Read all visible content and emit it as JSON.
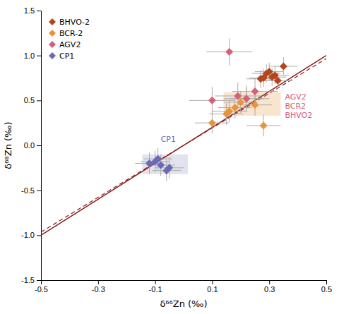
{
  "chart_data": {
    "type": "scatter",
    "title": "",
    "xlabel": "δ⁶⁶Zn (‰)",
    "ylabel": "δ⁶⁸Zn (‰)",
    "xlim": [
      -0.5,
      0.5
    ],
    "ylim": [
      -1.5,
      1.5
    ],
    "xticks": [
      -0.5,
      -0.3,
      -0.1,
      0.1,
      0.3,
      0.5
    ],
    "yticks": [
      -1.5,
      {
        "value": -1.0,
        "label": "-1.0"
      },
      -0.5,
      {
        "value": 0.0,
        "label": "0.0"
      },
      0.5,
      {
        "value": 1.0,
        "label": "1.0"
      },
      1.5
    ],
    "grid": false,
    "legend": "upper-left",
    "series": [
      {
        "name": "BHVO-2",
        "color": "#b5451b",
        "marker": "diamond",
        "x": [
          0.3,
          0.28,
          0.32,
          0.33,
          0.29,
          0.31,
          0.35,
          0.27
        ],
        "values": [
          0.82,
          0.75,
          0.78,
          0.72,
          0.8,
          0.76,
          0.88,
          0.74
        ],
        "xerr": [
          0.05,
          0.05,
          0.05,
          0.05,
          0.05,
          0.05,
          0.05,
          0.05
        ],
        "yerr": [
          0.1,
          0.1,
          0.1,
          0.1,
          0.1,
          0.1,
          0.1,
          0.1
        ]
      },
      {
        "name": "BCR-2",
        "color": "#e8943a",
        "marker": "diamond",
        "x": [
          0.18,
          0.2,
          0.22,
          0.25,
          0.16,
          0.28,
          0.1,
          0.15
        ],
        "values": [
          0.42,
          0.48,
          0.52,
          0.45,
          0.38,
          0.22,
          0.25,
          0.35
        ],
        "xerr": [
          0.06,
          0.06,
          0.06,
          0.06,
          0.06,
          0.06,
          0.06,
          0.06
        ],
        "yerr": [
          0.12,
          0.12,
          0.12,
          0.12,
          0.12,
          0.12,
          0.12,
          0.12
        ]
      },
      {
        "name": "AGV2",
        "color": "#d4607a",
        "marker": "diamond",
        "x": [
          0.16,
          0.19,
          0.25,
          0.22,
          0.1
        ],
        "values": [
          1.04,
          0.55,
          0.6,
          0.52,
          0.5
        ],
        "xerr": [
          0.08,
          0.08,
          0.08,
          0.08,
          0.08
        ],
        "yerr": [
          0.15,
          0.15,
          0.15,
          0.15,
          0.15
        ]
      },
      {
        "name": "CP1",
        "color": "#6b6bb5",
        "marker": "diamond",
        "x": [
          -0.1,
          -0.08,
          -0.06,
          -0.09,
          -0.12,
          -0.05
        ],
        "values": [
          -0.18,
          -0.22,
          -0.28,
          -0.15,
          -0.2,
          -0.25
        ],
        "xerr": [
          0.05,
          0.05,
          0.05,
          0.05,
          0.05,
          0.05
        ],
        "yerr": [
          0.12,
          0.12,
          0.12,
          0.12,
          0.12,
          0.12
        ]
      }
    ],
    "lines": [
      {
        "color": "#8b1a1a",
        "line_style": "solid",
        "x": [
          -0.5,
          0.5
        ],
        "values": [
          -1.0,
          1.0
        ]
      },
      {
        "color": "#8b1a1a",
        "line_style": "dashed",
        "x": [
          -0.5,
          0.5
        ],
        "values": [
          -0.965,
          0.965
        ]
      }
    ],
    "regions": [
      {
        "color": "#9090c0",
        "x": [
          -0.145,
          0.015
        ],
        "y": [
          -0.32,
          -0.1
        ]
      },
      {
        "color": "#e8943a",
        "x": [
          0.14,
          0.34
        ],
        "y": [
          0.33,
          0.59
        ]
      }
    ],
    "annotations": [
      {
        "text": "CP1",
        "x": -0.08,
        "y": 0.04,
        "color": "#6b6bb5"
      },
      {
        "text": "AGV2\nBCR2\nBHVO2",
        "x": 0.355,
        "y": 0.58,
        "color": "#d4607a"
      }
    ]
  }
}
